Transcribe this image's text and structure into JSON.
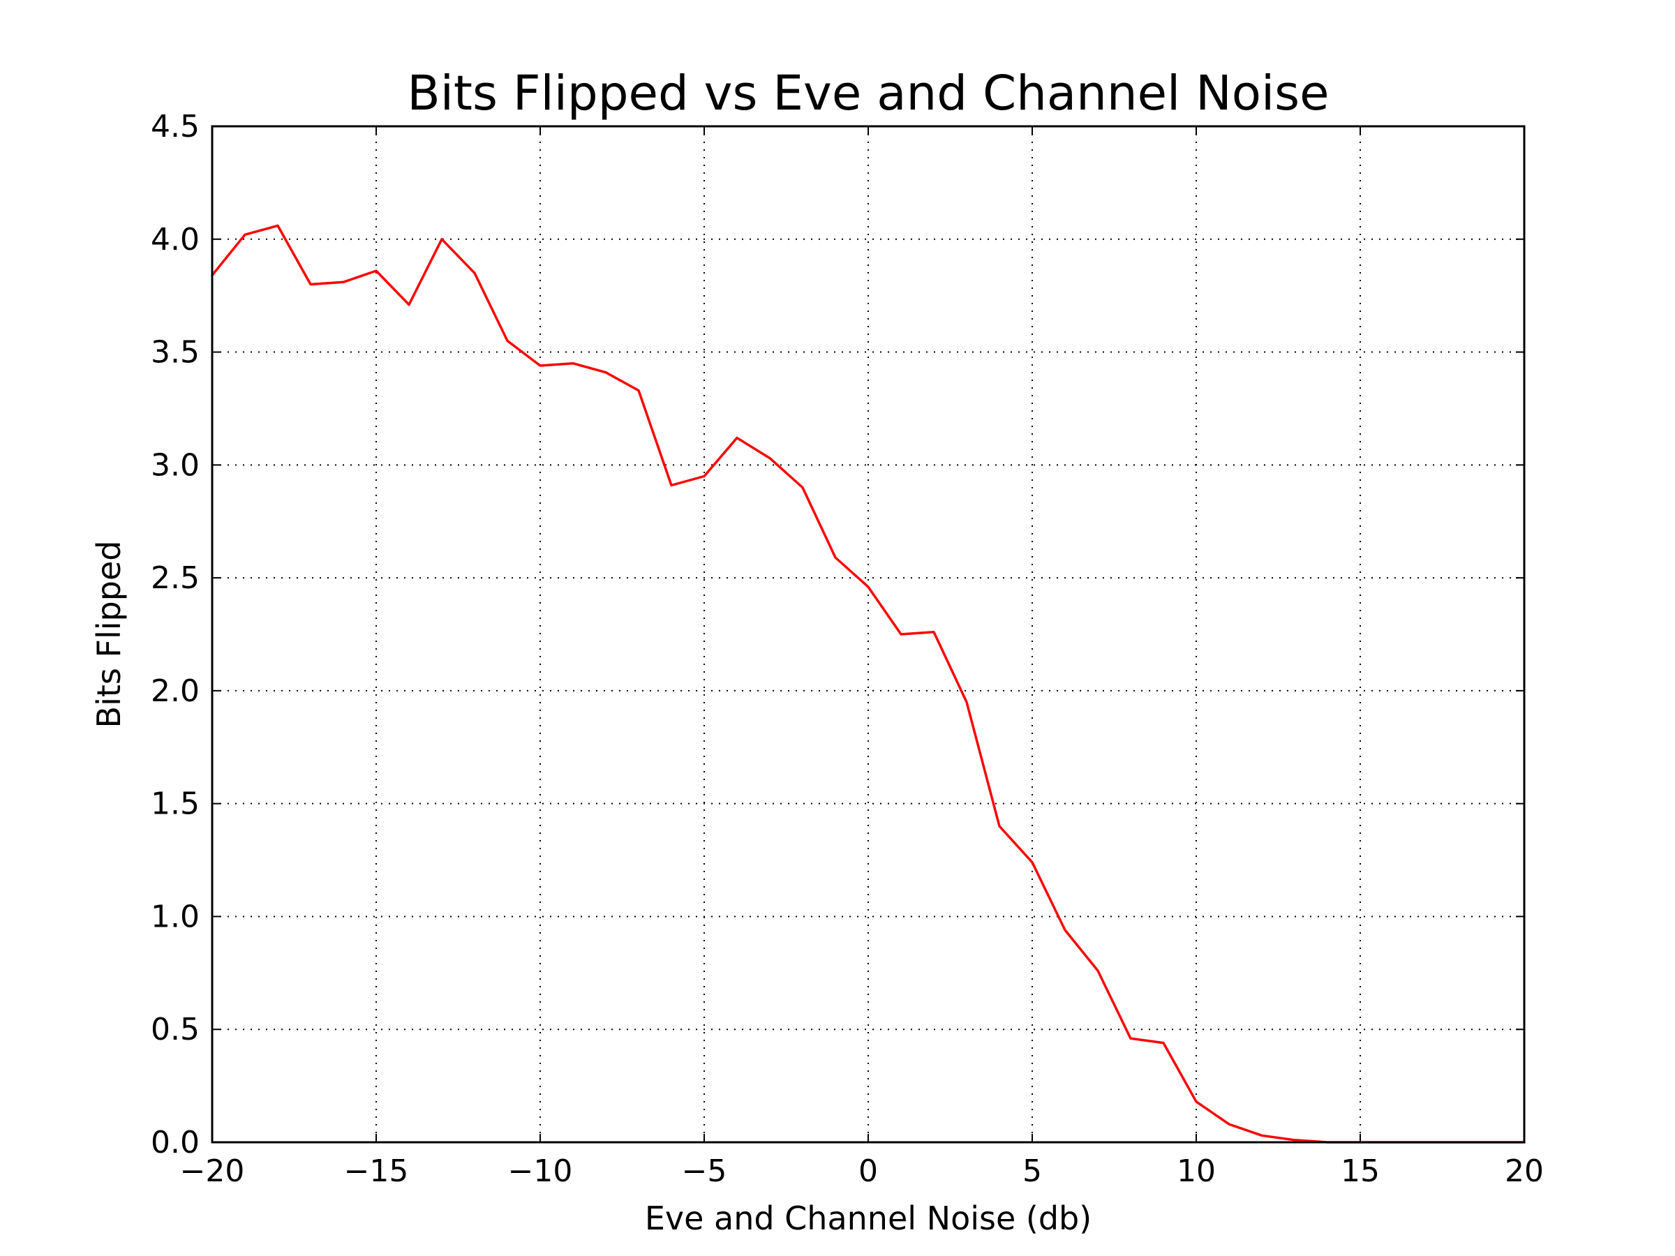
{
  "colors": {
    "background": "#ffffff",
    "axes": "#000000",
    "series": "#ff0000"
  },
  "chart_data": {
    "type": "line",
    "title": "Bits Flipped vs Eve and Channel Noise",
    "xlabel": "Eve and Channel Noise (db)",
    "ylabel": "Bits Flipped",
    "xlim": [
      -20,
      20
    ],
    "ylim": [
      0,
      4.5
    ],
    "grid": true,
    "legend": "none",
    "x_ticks": [
      -20,
      -15,
      -10,
      -5,
      0,
      5,
      10,
      15,
      20
    ],
    "x_tick_labels": [
      "−20",
      "−15",
      "−10",
      "−5",
      "0",
      "5",
      "10",
      "15",
      "20"
    ],
    "y_ticks": [
      0,
      0.5,
      1.0,
      1.5,
      2.0,
      2.5,
      3.0,
      3.5,
      4.0,
      4.5
    ],
    "y_tick_labels": [
      "0.0",
      "0.5",
      "1.0",
      "1.5",
      "2.0",
      "2.5",
      "3.0",
      "3.5",
      "4.0",
      "4.5"
    ],
    "series": [
      {
        "color": "#ff0000",
        "x": [
          -20,
          -19,
          -18,
          -17,
          -16,
          -15,
          -14,
          -13,
          -12,
          -11,
          -10,
          -9,
          -8,
          -7,
          -6,
          -5,
          -4,
          -3,
          -2,
          -1,
          0,
          1,
          2,
          3,
          4,
          5,
          6,
          7,
          8,
          9,
          10,
          11,
          12,
          13,
          14,
          15,
          16,
          17,
          18,
          19,
          20
        ],
        "y": [
          3.84,
          4.02,
          4.06,
          3.8,
          3.81,
          3.86,
          3.71,
          4.0,
          3.85,
          3.55,
          3.44,
          3.45,
          3.41,
          3.33,
          2.91,
          2.95,
          3.12,
          3.03,
          2.9,
          2.59,
          2.46,
          2.25,
          2.26,
          1.95,
          1.4,
          1.24,
          0.94,
          0.76,
          0.46,
          0.44,
          0.18,
          0.08,
          0.03,
          0.01,
          0.0,
          0.0,
          0.0,
          0.0,
          0.0,
          0.0,
          0.0
        ]
      }
    ]
  }
}
